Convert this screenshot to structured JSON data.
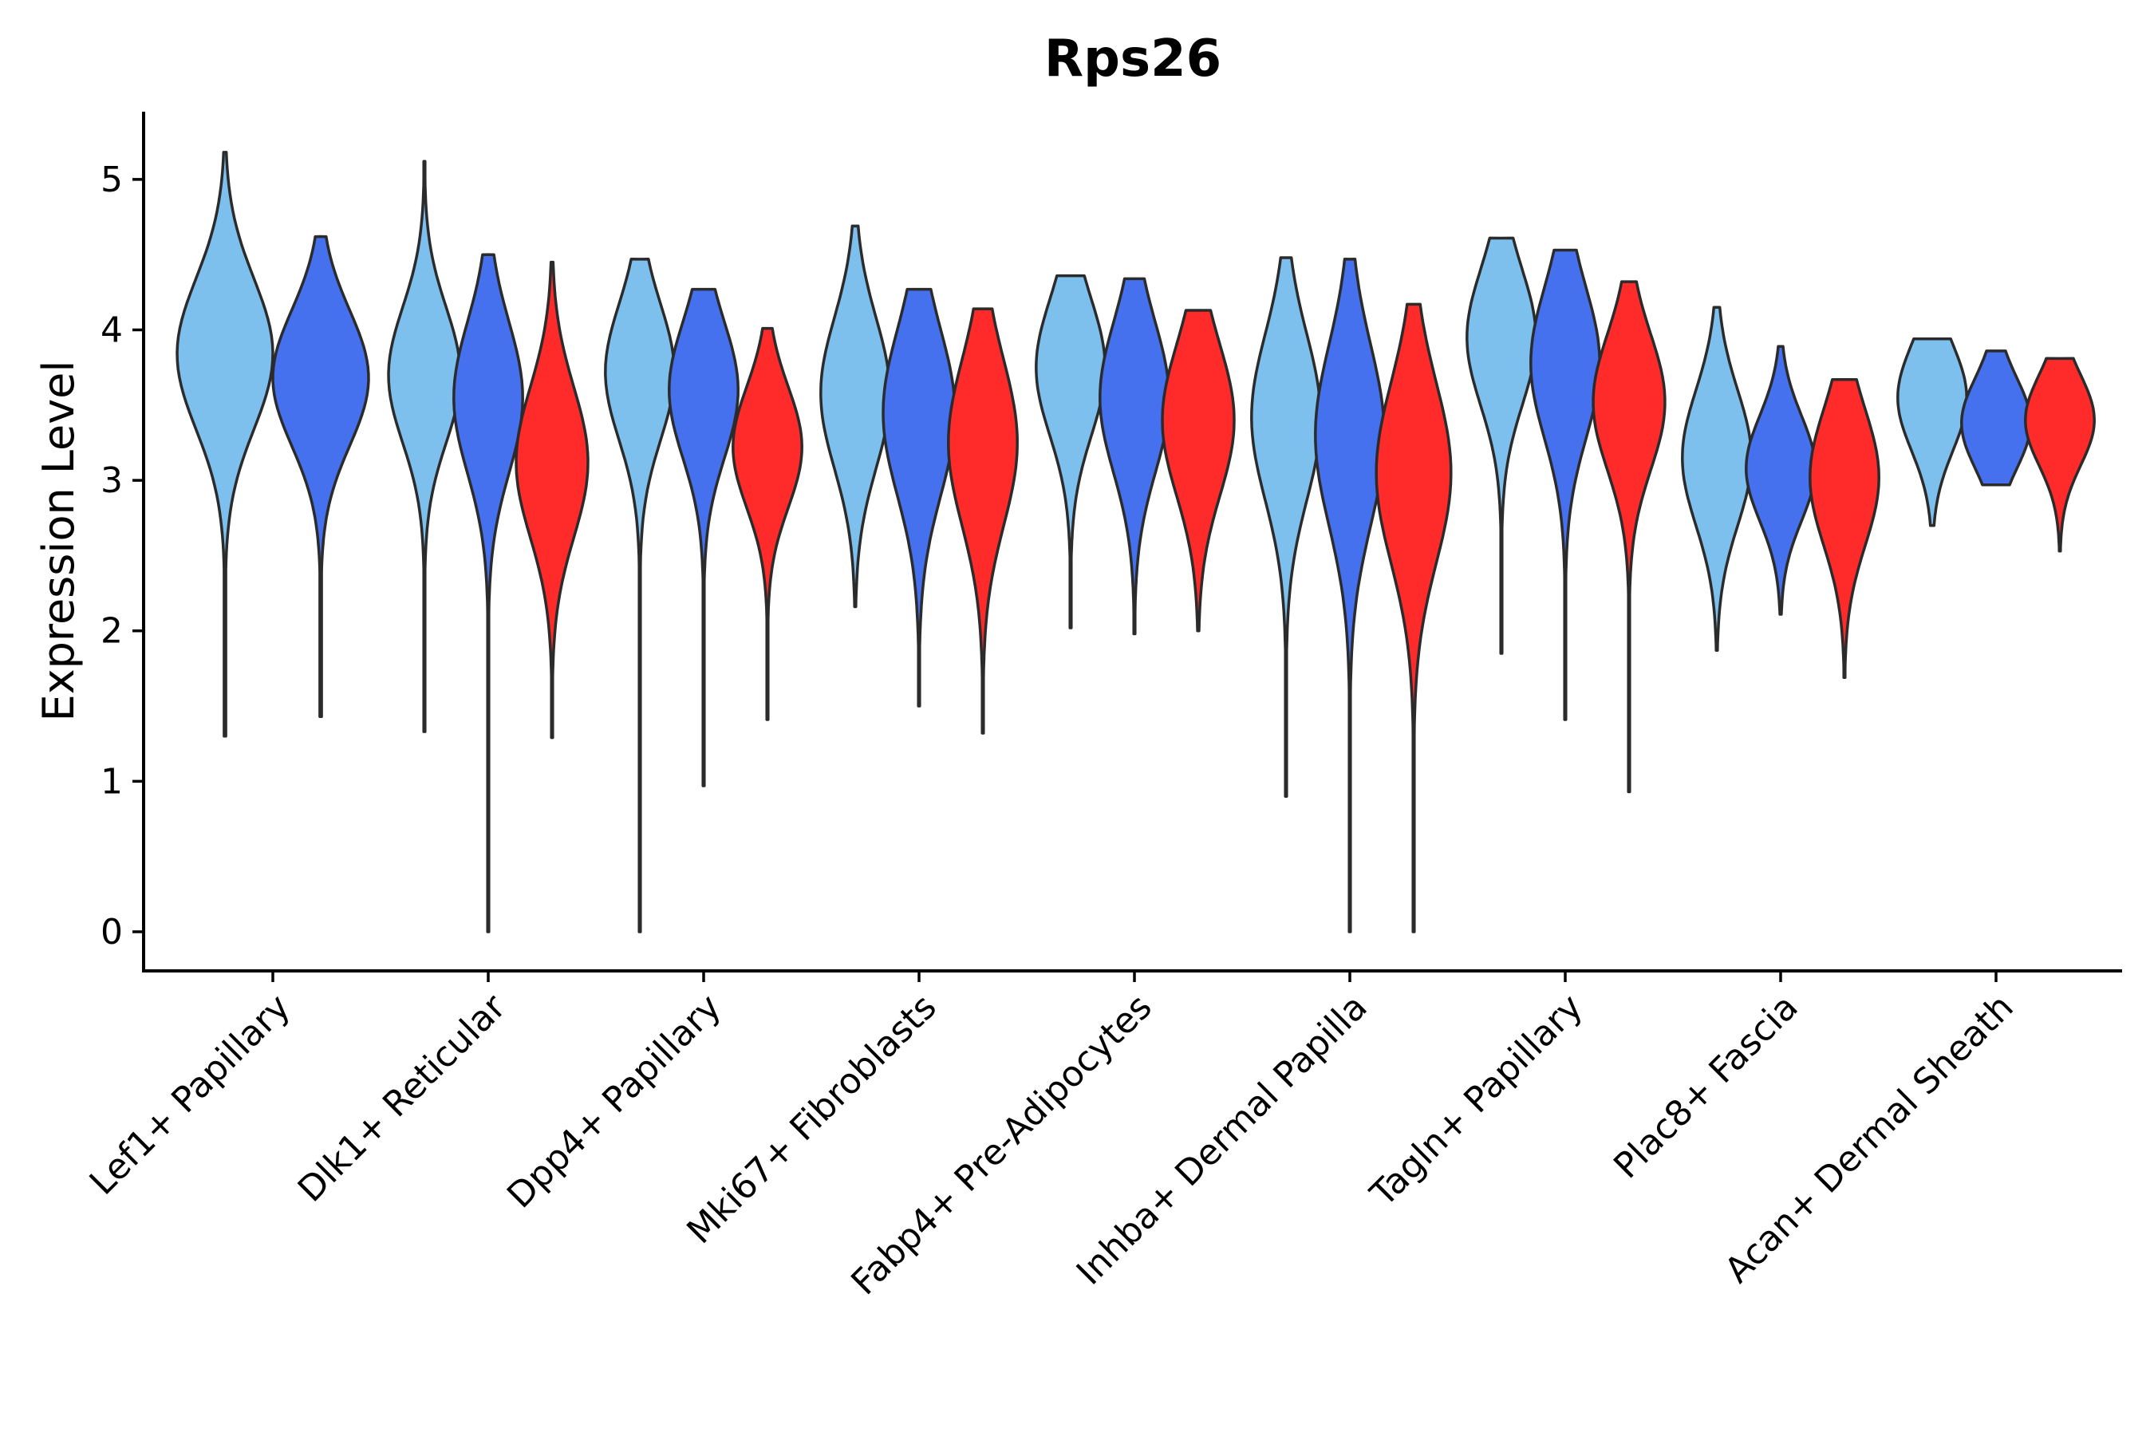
{
  "chart_data": {
    "type": "violin",
    "title": "Rps26",
    "xlabel": "",
    "ylabel": "Expression Level",
    "ylim": [
      -0.26,
      5.45
    ],
    "yticks": [
      0,
      1,
      2,
      3,
      4,
      5
    ],
    "legend": "none",
    "series_colors": [
      "#7dbfed",
      "#4570ee",
      "#ff2b2b"
    ],
    "categories": [
      {
        "label": "Lef1+ Papillary",
        "violins": [
          {
            "series": 0,
            "min": 1.3,
            "max": 5.18,
            "peak": 3.84,
            "spread": 0.5,
            "wide": 1.0
          },
          {
            "series": 1,
            "min": 1.43,
            "max": 4.62,
            "peak": 3.68,
            "spread": 0.45,
            "wide": 1.0
          }
        ]
      },
      {
        "label": "Dlk1+ Reticular",
        "violins": [
          {
            "series": 0,
            "min": 1.33,
            "max": 5.12,
            "peak": 3.7,
            "spread": 0.45,
            "wide": 0.75
          },
          {
            "series": 1,
            "min": 0.0,
            "max": 4.5,
            "peak": 3.55,
            "spread": 0.5,
            "wide": 0.72
          },
          {
            "series": 2,
            "min": 1.29,
            "max": 4.45,
            "peak": 3.12,
            "spread": 0.5,
            "wide": 0.75
          }
        ]
      },
      {
        "label": "Dpp4+ Papillary",
        "violins": [
          {
            "series": 0,
            "min": 0.0,
            "max": 4.47,
            "peak": 3.72,
            "spread": 0.45,
            "wide": 0.72
          },
          {
            "series": 1,
            "min": 0.97,
            "max": 4.27,
            "peak": 3.6,
            "spread": 0.45,
            "wide": 0.72
          },
          {
            "series": 2,
            "min": 1.41,
            "max": 4.01,
            "peak": 3.22,
            "spread": 0.4,
            "wide": 0.72
          }
        ]
      },
      {
        "label": "Mki67+ Fibroblasts",
        "violins": [
          {
            "series": 0,
            "min": 2.16,
            "max": 4.69,
            "peak": 3.58,
            "spread": 0.5,
            "wide": 0.72
          },
          {
            "series": 1,
            "min": 1.5,
            "max": 4.27,
            "peak": 3.45,
            "spread": 0.55,
            "wide": 0.75
          },
          {
            "series": 2,
            "min": 1.32,
            "max": 4.14,
            "peak": 3.25,
            "spread": 0.55,
            "wide": 0.72
          }
        ]
      },
      {
        "label": "Fabp4+ Pre-Adipocytes",
        "violins": [
          {
            "series": 0,
            "min": 2.02,
            "max": 4.36,
            "peak": 3.75,
            "spread": 0.45,
            "wide": 0.72
          },
          {
            "series": 1,
            "min": 1.98,
            "max": 4.34,
            "peak": 3.55,
            "spread": 0.5,
            "wide": 0.72
          },
          {
            "series": 2,
            "min": 2.0,
            "max": 4.13,
            "peak": 3.4,
            "spread": 0.5,
            "wide": 0.75
          }
        ]
      },
      {
        "label": "Inhba+ Dermal Papilla",
        "violins": [
          {
            "series": 0,
            "min": 0.9,
            "max": 4.48,
            "peak": 3.42,
            "spread": 0.55,
            "wide": 0.72
          },
          {
            "series": 1,
            "min": 0.0,
            "max": 4.47,
            "peak": 3.3,
            "spread": 0.6,
            "wide": 0.72
          },
          {
            "series": 2,
            "min": 0.0,
            "max": 4.17,
            "peak": 3.05,
            "spread": 0.6,
            "wide": 0.78
          }
        ]
      },
      {
        "label": "Tagln+ Papillary",
        "violins": [
          {
            "series": 0,
            "min": 1.85,
            "max": 4.61,
            "peak": 3.95,
            "spread": 0.45,
            "wide": 0.72
          },
          {
            "series": 1,
            "min": 1.41,
            "max": 4.53,
            "peak": 3.78,
            "spread": 0.5,
            "wide": 0.72
          },
          {
            "series": 2,
            "min": 0.93,
            "max": 4.32,
            "peak": 3.52,
            "spread": 0.45,
            "wide": 0.75
          }
        ]
      },
      {
        "label": "Plac8+ Fascia",
        "violins": [
          {
            "series": 0,
            "min": 1.87,
            "max": 4.15,
            "peak": 3.15,
            "spread": 0.45,
            "wide": 0.72
          },
          {
            "series": 1,
            "min": 2.11,
            "max": 3.89,
            "peak": 3.08,
            "spread": 0.35,
            "wide": 0.72
          },
          {
            "series": 2,
            "min": 1.69,
            "max": 3.67,
            "peak": 3.02,
            "spread": 0.45,
            "wide": 0.72
          }
        ]
      },
      {
        "label": "Acan+ Dermal Sheath",
        "violins": [
          {
            "series": 0,
            "min": 2.7,
            "max": 3.94,
            "peak": 3.55,
            "spread": 0.35,
            "wide": 0.72
          },
          {
            "series": 1,
            "min": 2.97,
            "max": 3.86,
            "peak": 3.38,
            "spread": 0.3,
            "wide": 0.72
          },
          {
            "series": 2,
            "min": 2.53,
            "max": 3.81,
            "peak": 3.4,
            "spread": 0.3,
            "wide": 0.72
          }
        ]
      }
    ]
  }
}
